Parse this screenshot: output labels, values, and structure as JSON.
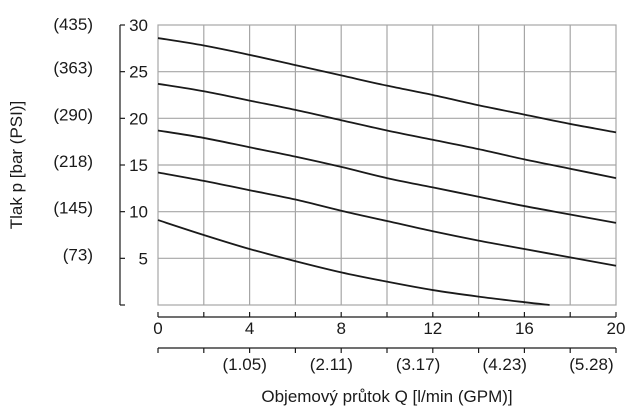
{
  "chart_data": {
    "type": "line",
    "ylabel": "Tlak p [bar (PSI)]",
    "xlabel": "Objemový průtok Q [l/min (GPM)]",
    "xlim": [
      0,
      20
    ],
    "ylim": [
      0,
      30
    ],
    "grid": true,
    "x_ticks": [
      "0",
      "4",
      "8",
      "12",
      "16",
      "20"
    ],
    "x_ticks_secondary": [
      "(1.05)",
      "(2.11)",
      "(3.17)",
      "(4.23)",
      "(5.28)"
    ],
    "y_ticks": [
      "5",
      "10",
      "15",
      "20",
      "25",
      "30"
    ],
    "y_ticks_secondary": [
      "(73)",
      "(145)",
      "(218)",
      "(290)",
      "(363)",
      "(435)"
    ],
    "series": [
      {
        "x": [
          0,
          2,
          4,
          6,
          8,
          10,
          12,
          14,
          16,
          17.1
        ],
        "y": [
          9.1,
          7.5,
          6.0,
          4.7,
          3.5,
          2.5,
          1.6,
          0.9,
          0.3,
          0
        ]
      },
      {
        "x": [
          0,
          2,
          4,
          6,
          8,
          10,
          12,
          14,
          16,
          18,
          20
        ],
        "y": [
          14.2,
          13.3,
          12.3,
          11.3,
          10.1,
          9.0,
          7.9,
          6.9,
          6.0,
          5.1,
          4.2
        ]
      },
      {
        "x": [
          0,
          2,
          4,
          6,
          8,
          10,
          12,
          14,
          16,
          18,
          20
        ],
        "y": [
          18.7,
          17.9,
          16.9,
          15.9,
          14.8,
          13.6,
          12.6,
          11.6,
          10.6,
          9.7,
          8.8
        ]
      },
      {
        "x": [
          0,
          2,
          4,
          6,
          8,
          10,
          12,
          14,
          16,
          18,
          20
        ],
        "y": [
          23.7,
          22.9,
          21.9,
          20.9,
          19.8,
          18.7,
          17.7,
          16.7,
          15.6,
          14.6,
          13.6
        ]
      },
      {
        "x": [
          0,
          2,
          4,
          6,
          8,
          10,
          12,
          14,
          16,
          18,
          20
        ],
        "y": [
          28.6,
          27.8,
          26.8,
          25.7,
          24.6,
          23.5,
          22.5,
          21.4,
          20.4,
          19.4,
          18.5
        ]
      }
    ]
  }
}
